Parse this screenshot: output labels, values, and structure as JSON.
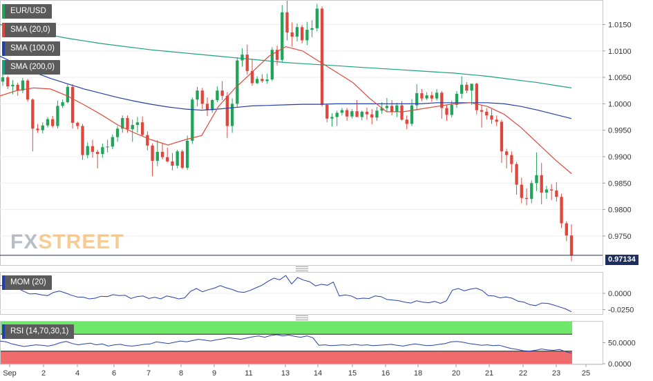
{
  "watermark": {
    "fx": "FX",
    "street": "STREET"
  },
  "legends": {
    "pair": {
      "label": "EUR/USD",
      "color": "#22a35a"
    },
    "sma20": {
      "label": "SMA (20,0)",
      "color": "#e0473c"
    },
    "sma100": {
      "label": "SMA (100,0)",
      "color": "#2340a8"
    },
    "sma200": {
      "label": "SMA (200,0)",
      "color": "#1aa07f"
    },
    "mom": {
      "label": "MOM (20)",
      "color": "#2340a8"
    },
    "rsi": {
      "label": "RSI (14,70,30,1)",
      "color": "#2340a8"
    }
  },
  "price_tag": "0.97134",
  "chart_data": [
    {
      "type": "candlestick",
      "title": "EUR/USD",
      "ylim": [
        0.9695,
        1.0195
      ],
      "y_ticks": [
        "1.0150",
        "1.0100",
        "1.0050",
        "1.0000",
        "0.9950",
        "0.9900",
        "0.9850",
        "0.9800",
        "0.9750"
      ],
      "x_ticks": [
        "Sep",
        "2",
        "4",
        "6",
        "7",
        "8",
        "9",
        "11",
        "13",
        "14",
        "15",
        "16",
        "18",
        "20",
        "21",
        "22",
        "23",
        "25"
      ],
      "last_price": 0.97134,
      "candles": [
        [
          1.0042,
          1.0062,
          1.0034,
          1.005
        ],
        [
          1.005,
          1.0053,
          1.0028,
          1.0033
        ],
        [
          1.0033,
          1.0045,
          1.0018,
          1.0036
        ],
        [
          1.0036,
          1.004,
          1.0015,
          1.0025
        ],
        [
          1.0025,
          1.0049,
          1.002,
          1.0044
        ],
        [
          1.0044,
          1.0047,
          1.0004,
          1.0008
        ],
        [
          1.0008,
          1.001,
          0.991,
          0.9953
        ],
        [
          0.9953,
          0.9962,
          0.9945,
          0.995
        ],
        [
          0.995,
          0.9965,
          0.9944,
          0.9959
        ],
        [
          0.9959,
          0.9975,
          0.9955,
          0.9971
        ],
        [
          0.9971,
          0.9977,
          0.9955,
          0.9958
        ],
        [
          0.9958,
          1.0006,
          0.9953,
          0.9996
        ],
        [
          0.9996,
          1.0008,
          0.9992,
          1.0003
        ],
        [
          1.0003,
          1.0037,
          1.0001,
          1.0032
        ],
        [
          1.0032,
          1.0037,
          0.9953,
          0.9964
        ],
        [
          0.9964,
          0.9966,
          0.9952,
          0.9958
        ],
        [
          0.9958,
          0.9962,
          0.9894,
          0.9903
        ],
        [
          0.9903,
          0.9927,
          0.9897,
          0.992
        ],
        [
          0.992,
          0.9932,
          0.9898,
          0.9909
        ],
        [
          0.9909,
          0.9913,
          0.9878,
          0.9905
        ],
        [
          0.9905,
          0.9925,
          0.9898,
          0.9918
        ],
        [
          0.9918,
          0.9932,
          0.9908,
          0.9919
        ],
        [
          0.9919,
          0.9942,
          0.9914,
          0.9937
        ],
        [
          0.9937,
          0.9958,
          0.9928,
          0.9953
        ],
        [
          0.9953,
          0.9978,
          0.9945,
          0.9973
        ],
        [
          0.9973,
          0.9978,
          0.9945,
          0.9952
        ],
        [
          0.9952,
          0.997,
          0.9928,
          0.996
        ],
        [
          0.996,
          0.9975,
          0.9945,
          0.9965
        ],
        [
          0.9965,
          0.9976,
          0.9938,
          0.9941
        ],
        [
          0.9941,
          0.9948,
          0.9912,
          0.9921
        ],
        [
          0.9921,
          0.9925,
          0.9863,
          0.9892
        ],
        [
          0.9892,
          0.9931,
          0.9882,
          0.9909
        ],
        [
          0.9909,
          0.9925,
          0.9895,
          0.9899
        ],
        [
          0.9899,
          0.9917,
          0.9889,
          0.9891
        ],
        [
          0.9891,
          0.9907,
          0.9874,
          0.9883
        ],
        [
          0.9883,
          0.9913,
          0.9878,
          0.991
        ],
        [
          0.991,
          0.9913,
          0.9876,
          0.9879
        ],
        [
          0.9879,
          0.994,
          0.9875,
          0.993
        ],
        [
          0.993,
          1.0012,
          0.9924,
          1.0008
        ],
        [
          1.0008,
          1.0032,
          0.9995,
          1.0025
        ],
        [
          1.0025,
          1.003,
          0.999,
          1.0
        ],
        [
          1.0,
          1.0012,
          0.9977,
          0.9988
        ],
        [
          0.9988,
          1.0009,
          0.9983,
          1.0007
        ],
        [
          1.0007,
          1.0033,
          1.0003,
          1.0025
        ],
        [
          1.0025,
          1.0043,
          1.0007,
          1.0015
        ],
        [
          1.0015,
          1.0022,
          0.9935,
          0.9958
        ],
        [
          0.9958,
          1.001,
          0.9945,
          1.0
        ],
        [
          1.0,
          1.0088,
          0.9993,
          1.0082
        ],
        [
          1.0082,
          1.0105,
          1.007,
          1.0093
        ],
        [
          1.0093,
          1.0112,
          1.0055,
          1.0062
        ],
        [
          1.0062,
          1.0085,
          1.0034,
          1.0039
        ],
        [
          1.0039,
          1.0052,
          1.0037,
          1.0047
        ],
        [
          1.0047,
          1.0056,
          1.004,
          1.0043
        ],
        [
          1.0043,
          1.0057,
          1.0038,
          1.0046
        ],
        [
          1.0046,
          1.0107,
          1.0043,
          1.0102
        ],
        [
          1.0102,
          1.011,
          1.0073,
          1.0083
        ],
        [
          1.0083,
          1.0187,
          1.0078,
          1.0173
        ],
        [
          1.0173,
          1.0195,
          1.012,
          1.0135
        ],
        [
          1.0135,
          1.0154,
          1.0108,
          1.0127
        ],
        [
          1.0127,
          1.0152,
          1.0118,
          1.0145
        ],
        [
          1.0145,
          1.0149,
          1.0114,
          1.012
        ],
        [
          1.012,
          1.0155,
          1.0111,
          1.014
        ],
        [
          1.014,
          1.0158,
          1.0126,
          1.0143
        ],
        [
          1.0143,
          1.0189,
          1.0137,
          1.018
        ],
        [
          1.018,
          1.0184,
          0.9995,
          0.9998
        ],
        [
          0.9998,
          1.0,
          0.9965,
          0.9972
        ],
        [
          0.9972,
          0.9982,
          0.9957,
          0.9975
        ],
        [
          0.9975,
          0.9987,
          0.9958,
          0.9983
        ],
        [
          0.9983,
          0.9992,
          0.9978,
          0.9988
        ],
        [
          0.9988,
          0.9992,
          0.9968,
          0.9976
        ],
        [
          0.9976,
          0.999,
          0.9972,
          0.9986
        ],
        [
          0.9986,
          1.0007,
          0.9976,
          0.9975
        ],
        [
          0.9975,
          0.9987,
          0.9969,
          0.9985
        ],
        [
          0.9985,
          0.9993,
          0.997,
          0.998
        ],
        [
          0.998,
          0.999,
          0.9961,
          0.9974
        ],
        [
          0.9974,
          0.9994,
          0.9968,
          0.9987
        ],
        [
          0.9987,
          1.0003,
          0.9981,
          0.9992
        ],
        [
          0.9992,
          1.0011,
          0.9985,
          0.9996
        ],
        [
          0.9996,
          1.0007,
          0.9978,
          0.9985
        ],
        [
          0.9985,
          1.0002,
          0.9975,
          0.9997
        ],
        [
          0.9997,
          1.0005,
          0.9968,
          0.997
        ],
        [
          0.997,
          0.9978,
          0.9952,
          0.9962
        ],
        [
          0.9962,
          1.0009,
          0.9958,
          0.9997
        ],
        [
          0.9997,
          1.0037,
          0.9987,
          1.002
        ],
        [
          1.002,
          1.0028,
          1.0005,
          1.001
        ],
        [
          1.001,
          1.0022,
          1.0007,
          1.0016
        ],
        [
          1.0016,
          1.0023,
          1.0004,
          1.001
        ],
        [
          1.001,
          1.0028,
          1.0006,
          1.0021
        ],
        [
          1.0021,
          1.0024,
          0.9972,
          0.9992
        ],
        [
          0.9992,
          0.9998,
          0.9968,
          0.9979
        ],
        [
          0.9979,
          1.0006,
          0.9974,
          0.9998
        ],
        [
          0.9998,
          1.0024,
          0.9992,
          1.0019
        ],
        [
          1.0019,
          1.0052,
          1.001,
          1.0036
        ],
        [
          1.0036,
          1.0041,
          1.002,
          1.0025
        ],
        [
          1.0025,
          1.0037,
          0.9998,
          1.0038
        ],
        [
          1.0038,
          1.004,
          0.998,
          0.9988
        ],
        [
          0.9988,
          0.9998,
          0.9955,
          0.9985
        ],
        [
          0.9985,
          0.9992,
          0.997,
          0.9978
        ],
        [
          0.9978,
          0.999,
          0.9962,
          0.997
        ],
        [
          0.997,
          0.9978,
          0.9958,
          0.9966
        ],
        [
          0.9966,
          0.997,
          0.9888,
          0.991
        ],
        [
          0.991,
          0.9915,
          0.9878,
          0.9903
        ],
        [
          0.9903,
          0.991,
          0.987,
          0.9886
        ],
        [
          0.9886,
          0.989,
          0.9828,
          0.9847
        ],
        [
          0.9847,
          0.986,
          0.9812,
          0.9822
        ],
        [
          0.9822,
          0.984,
          0.9808,
          0.982
        ],
        [
          0.982,
          0.9855,
          0.9812,
          0.985
        ],
        [
          0.985,
          0.9908,
          0.9835,
          0.9865
        ],
        [
          0.9865,
          0.9888,
          0.981,
          0.9832
        ],
        [
          0.9832,
          0.9845,
          0.982,
          0.9838
        ],
        [
          0.9838,
          0.9848,
          0.9818,
          0.9836
        ],
        [
          0.9836,
          0.9852,
          0.9815,
          0.9824
        ],
        [
          0.9824,
          0.983,
          0.9765,
          0.9774
        ],
        [
          0.9774,
          0.9778,
          0.974,
          0.9751
        ],
        [
          0.9751,
          0.9772,
          0.9702,
          0.9713
        ]
      ],
      "sma20": [
        1.0015,
        1.0025,
        1.003,
        1.0028,
        1.0015,
        0.9998,
        0.998,
        0.996,
        0.9945,
        0.9932,
        0.9922,
        0.9932,
        0.994,
        0.9995,
        1.003,
        1.006,
        1.009,
        1.0108,
        1.01,
        1.008,
        1.006,
        1.004,
        1.001,
        0.9985,
        0.9985,
        0.999,
        0.9995,
        1.0,
        1.0002,
        0.9995,
        0.998,
        0.9955,
        0.9925,
        0.9895,
        0.9868
      ],
      "sma100": [
        1.009,
        1.0075,
        1.006,
        1.0048,
        1.0038,
        1.0028,
        1.002,
        1.0012,
        1.0005,
        0.9999,
        0.9994,
        0.999,
        0.9988,
        0.999,
        0.9993,
        0.9996,
        0.9997,
        0.9998,
        0.9999,
        0.9999,
        1.0,
        1.0,
        1.0,
        1.0,
        1.0,
        1.0,
        1.0002,
        1.0002,
        1.0002,
        1.0002,
        1.0,
        0.9995,
        0.9988,
        0.998,
        0.9972
      ],
      "sma200": [
        1.015,
        1.0143,
        1.0136,
        1.013,
        1.0124,
        1.0119,
        1.0114,
        1.011,
        1.0106,
        1.0102,
        1.0099,
        1.0096,
        1.0093,
        1.009,
        1.0087,
        1.0084,
        1.0081,
        1.0078,
        1.0076,
        1.0074,
        1.0072,
        1.007,
        1.0068,
        1.0066,
        1.0064,
        1.0062,
        1.006,
        1.0058,
        1.0055,
        1.0052,
        1.0048,
        1.0044,
        1.004,
        1.0035,
        1.003
      ]
    },
    {
      "type": "line",
      "title": "MOM (20)",
      "ylim": [
        -0.032,
        0.032
      ],
      "y_ticks": [
        "0.0000",
        "-0.0250"
      ],
      "values": [
        0.012,
        0.012,
        0.0095,
        0.0078,
        0.003,
        -0.001,
        -0.0005,
        -0.0025,
        -0.0035,
        0.0015,
        0.0035,
        0.0005,
        -0.003,
        -0.0055,
        -0.006,
        -0.0085,
        -0.0075,
        -0.0045,
        -0.005,
        -0.002,
        -0.0035,
        -0.003,
        -0.008,
        -0.005,
        -0.004,
        -0.008,
        -0.006,
        -0.0085,
        -0.004,
        -0.006,
        -0.0085,
        -0.007,
        0.003,
        0.0075,
        0.0025,
        0.0055,
        0.008,
        0.012,
        0.0085,
        0.006,
        0.0025,
        0.0015,
        0.0045,
        0.0085,
        0.0125,
        0.0185,
        0.0235,
        0.021,
        0.0275,
        0.0145,
        0.0245,
        0.0205,
        0.018,
        0.0115,
        0.014,
        0.0125,
        0.0175,
        -0.004,
        -0.0025,
        -0.004,
        -0.0085,
        -0.0075,
        -0.008,
        -0.004,
        -0.005,
        -0.0095,
        -0.0105,
        -0.0115,
        -0.0135,
        -0.015,
        -0.0115,
        -0.0135,
        -0.0145,
        -0.0125,
        -0.0155,
        -0.0115,
        0.005,
        0.0075,
        0.004,
        0.0065,
        0.008,
        0.0045,
        -0.0035,
        -0.004,
        -0.007,
        -0.0055,
        -0.0075,
        -0.012,
        -0.0135,
        -0.0175,
        -0.019,
        -0.015,
        -0.0155,
        -0.018,
        -0.021,
        -0.024,
        -0.0285
      ]
    },
    {
      "type": "line",
      "title": "RSI (14,70,30,1)",
      "ylim": [
        0,
        100
      ],
      "y_ticks": [
        "50.0000",
        "0.0000"
      ],
      "overbought": 70,
      "oversold": 30,
      "values": [
        54,
        52,
        47,
        44,
        41,
        43,
        45,
        44,
        42,
        45,
        50,
        53,
        48,
        45,
        47,
        49,
        45,
        47,
        42,
        45,
        46,
        43,
        42,
        44,
        46,
        47,
        52,
        50,
        48,
        51,
        54,
        52,
        55,
        58,
        56,
        54,
        57,
        59,
        62,
        60,
        58,
        61,
        64,
        66,
        63,
        67,
        69,
        66,
        68,
        65,
        63,
        66,
        62,
        44,
        45,
        43,
        44,
        45,
        44,
        46,
        44,
        45,
        43,
        44,
        45,
        46,
        44,
        42,
        45,
        47,
        45,
        43,
        44,
        46,
        48,
        52,
        53,
        51,
        48,
        46,
        44,
        45,
        43,
        44,
        40,
        36,
        34,
        31,
        30,
        32,
        35,
        33,
        32,
        34,
        29,
        25
      ]
    }
  ]
}
